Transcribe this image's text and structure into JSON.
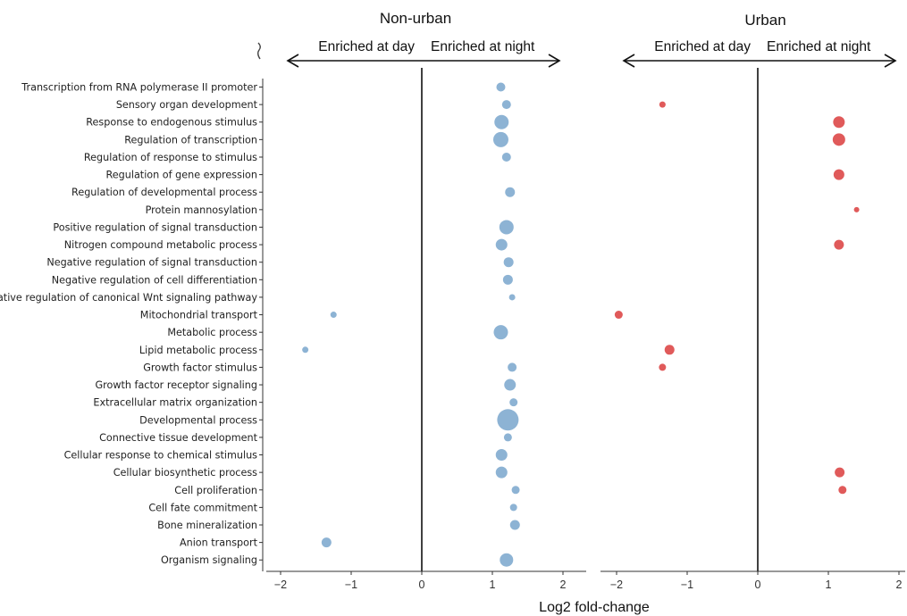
{
  "chart_data": {
    "type": "scatter",
    "title": "",
    "xlabel": "Log2 fold-change",
    "ylabel": "",
    "xlim": [
      -2.2,
      2.2
    ],
    "xticks": [
      -2,
      -1,
      0,
      1,
      2
    ],
    "xtick_labels": [
      "−2",
      "−1",
      "0",
      "1",
      "2"
    ],
    "grid": false,
    "arrow_labels": {
      "left": "Enriched at day",
      "right": "Enriched at night"
    },
    "categories": [
      "Transcription from RNA polymerase II promoter",
      "Sensory organ development",
      "Response to endogenous stimulus",
      "Regulation of transcription",
      "Regulation of response to stimulus",
      "Regulation of gene expression",
      "Regulation of developmental process",
      "Protein mannosylation",
      "Positive regulation of signal transduction",
      "Nitrogen compound metabolic process",
      "Negative regulation of signal transduction",
      "Negative regulation of cell differentiation",
      "Negative regulation of canonical Wnt signaling pathway",
      "Mitochondrial transport",
      "Metabolic process",
      "Lipid metabolic process",
      "Growth factor stimulus",
      "Growth factor receptor signaling",
      "Extracellular matrix organization",
      "Developmental process",
      "Connective tissue development",
      "Cellular response to chemical stimulus",
      "Cellular biosynthetic process",
      "Cell proliferation",
      "Cell fate commitment",
      "Bone mineralization",
      "Anion transport",
      "Organism signaling"
    ],
    "panels": [
      {
        "title": "Non-urban",
        "color": "#8db3d4",
        "points": [
          {
            "category": "Transcription from RNA polymerase II promoter",
            "x": 1.12,
            "size": 5
          },
          {
            "category": "Sensory organ development",
            "x": 1.2,
            "size": 5
          },
          {
            "category": "Response to endogenous stimulus",
            "x": 1.13,
            "size": 8
          },
          {
            "category": "Regulation of transcription",
            "x": 1.12,
            "size": 8.5
          },
          {
            "category": "Regulation of response to stimulus",
            "x": 1.2,
            "size": 5
          },
          {
            "category": "Regulation of gene expression",
            "x": null,
            "size": 0
          },
          {
            "category": "Regulation of developmental process",
            "x": 1.25,
            "size": 5.5
          },
          {
            "category": "Protein mannosylation",
            "x": null,
            "size": 0
          },
          {
            "category": "Positive regulation of signal transduction",
            "x": 1.2,
            "size": 8
          },
          {
            "category": "Nitrogen compound metabolic process",
            "x": 1.13,
            "size": 6.5
          },
          {
            "category": "Negative regulation of signal transduction",
            "x": 1.23,
            "size": 5.5
          },
          {
            "category": "Negative regulation of cell differentiation",
            "x": 1.22,
            "size": 5.5
          },
          {
            "category": "Negative regulation of canonical Wnt signaling pathway",
            "x": 1.28,
            "size": 3.5
          },
          {
            "category": "Mitochondrial transport",
            "x": -1.25,
            "size": 3.5
          },
          {
            "category": "Metabolic process",
            "x": 1.12,
            "size": 8
          },
          {
            "category": "Lipid metabolic process",
            "x": -1.65,
            "size": 3.5
          },
          {
            "category": "Growth factor stimulus",
            "x": 1.28,
            "size": 5
          },
          {
            "category": "Growth factor receptor signaling",
            "x": 1.25,
            "size": 6.5
          },
          {
            "category": "Extracellular matrix organization",
            "x": 1.3,
            "size": 4.5
          },
          {
            "category": "Developmental process",
            "x": 1.22,
            "size": 12
          },
          {
            "category": "Connective tissue development",
            "x": 1.22,
            "size": 4.5
          },
          {
            "category": "Cellular response to chemical stimulus",
            "x": 1.13,
            "size": 6.5
          },
          {
            "category": "Cellular biosynthetic process",
            "x": 1.13,
            "size": 6.5
          },
          {
            "category": "Cell proliferation",
            "x": 1.33,
            "size": 4.5
          },
          {
            "category": "Cell fate commitment",
            "x": 1.3,
            "size": 4
          },
          {
            "category": "Bone mineralization",
            "x": 1.32,
            "size": 5.5
          },
          {
            "category": "Anion transport",
            "x": -1.35,
            "size": 5.5
          },
          {
            "category": "Organism signaling",
            "x": 1.2,
            "size": 7.5
          }
        ]
      },
      {
        "title": "Urban",
        "color": "#e05a5a",
        "points": [
          {
            "category": "Transcription from RNA polymerase II promoter",
            "x": null,
            "size": 0
          },
          {
            "category": "Sensory organ development",
            "x": -1.35,
            "size": 3.5
          },
          {
            "category": "Response to endogenous stimulus",
            "x": 1.15,
            "size": 6.5
          },
          {
            "category": "Regulation of transcription",
            "x": 1.15,
            "size": 7
          },
          {
            "category": "Regulation of response to stimulus",
            "x": null,
            "size": 0
          },
          {
            "category": "Regulation of gene expression",
            "x": 1.15,
            "size": 6
          },
          {
            "category": "Regulation of developmental process",
            "x": null,
            "size": 0
          },
          {
            "category": "Protein mannosylation",
            "x": 1.4,
            "size": 3
          },
          {
            "category": "Positive regulation of signal transduction",
            "x": null,
            "size": 0
          },
          {
            "category": "Nitrogen compound metabolic process",
            "x": 1.15,
            "size": 5.5
          },
          {
            "category": "Negative regulation of signal transduction",
            "x": null,
            "size": 0
          },
          {
            "category": "Negative regulation of cell differentiation",
            "x": null,
            "size": 0
          },
          {
            "category": "Negative regulation of canonical Wnt signaling pathway",
            "x": null,
            "size": 0
          },
          {
            "category": "Mitochondrial transport",
            "x": -1.97,
            "size": 4.5
          },
          {
            "category": "Metabolic process",
            "x": null,
            "size": 0
          },
          {
            "category": "Lipid metabolic process",
            "x": -1.25,
            "size": 5.5
          },
          {
            "category": "Growth factor stimulus",
            "x": -1.35,
            "size": 4
          },
          {
            "category": "Growth factor receptor signaling",
            "x": null,
            "size": 0
          },
          {
            "category": "Extracellular matrix organization",
            "x": null,
            "size": 0
          },
          {
            "category": "Developmental process",
            "x": null,
            "size": 0
          },
          {
            "category": "Connective tissue development",
            "x": null,
            "size": 0
          },
          {
            "category": "Cellular response to chemical stimulus",
            "x": null,
            "size": 0
          },
          {
            "category": "Cellular biosynthetic process",
            "x": 1.16,
            "size": 5.5
          },
          {
            "category": "Cell proliferation",
            "x": 1.2,
            "size": 4.5
          },
          {
            "category": "Cell fate commitment",
            "x": null,
            "size": 0
          },
          {
            "category": "Bone mineralization",
            "x": null,
            "size": 0
          },
          {
            "category": "Anion transport",
            "x": null,
            "size": 0
          },
          {
            "category": "Organism signaling",
            "x": null,
            "size": 0
          }
        ]
      }
    ]
  }
}
